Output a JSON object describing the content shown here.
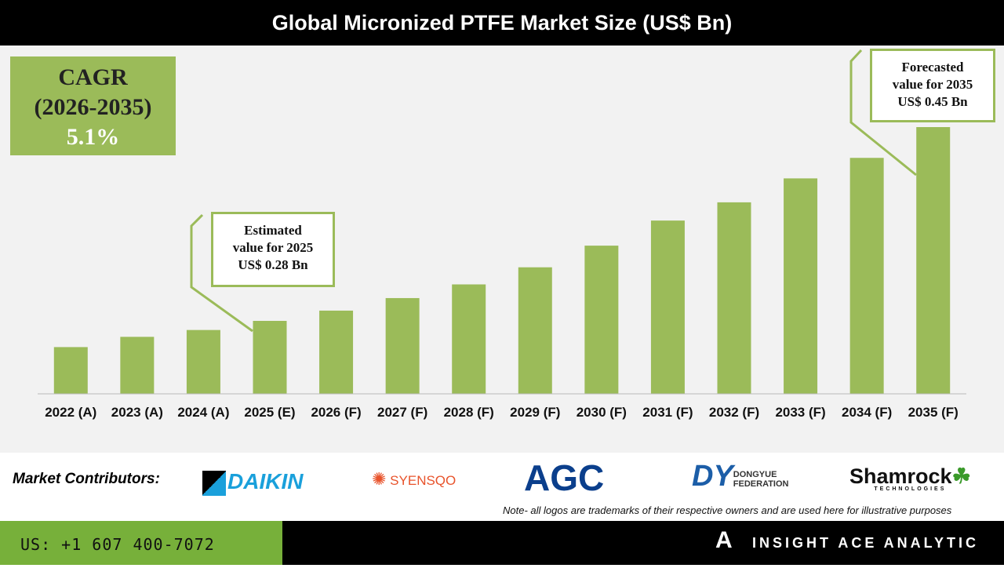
{
  "chart_data": {
    "type": "bar",
    "title": "Global Micronized PTFE Market Size (US$ Bn)",
    "categories": [
      "2022 (A)",
      "2023 (A)",
      "2024 (A)",
      "2025 (E)",
      "2026 (F)",
      "2027 (F)",
      "2028 (F)",
      "2029 (F)",
      "2030 (F)",
      "2031 (F)",
      "2032 (F)",
      "2033 (F)",
      "2034 (F)",
      "2035 (F)"
    ],
    "values": [
      0.257,
      0.266,
      0.272,
      0.28,
      0.289,
      0.3,
      0.312,
      0.327,
      0.346,
      0.368,
      0.384,
      0.405,
      0.423,
      0.45
    ],
    "ylim": [
      0.216,
      0.46
    ],
    "xlabel": "",
    "ylabel": "",
    "grid": false,
    "bar_color": "#9bbb59"
  },
  "cagr": {
    "label": "CAGR",
    "period": "(2026-2035)",
    "value": "5.1%"
  },
  "callouts": {
    "estimated": {
      "l1": "Estimated",
      "l2": "value for 2025",
      "l3": "US$ 0.28 Bn"
    },
    "forecasted": {
      "l1": "Forecasted",
      "l2": "value for 2035",
      "l3": "US$ 0.45 Bn"
    }
  },
  "contributors": {
    "label": "Market Contributors:",
    "logos": [
      "DAIKIN",
      "SYENSQO",
      "AGC",
      "DONGYUE",
      "FEDERATION",
      "Shamrock",
      "TECHNOLOGIES"
    ]
  },
  "note": "Note- all logos are trademarks of their respective owners and are used here for illustrative purposes",
  "footer": {
    "phone": "US: +1 607 400-7072",
    "brand": "INSIGHT ACE ANALYTIC"
  }
}
